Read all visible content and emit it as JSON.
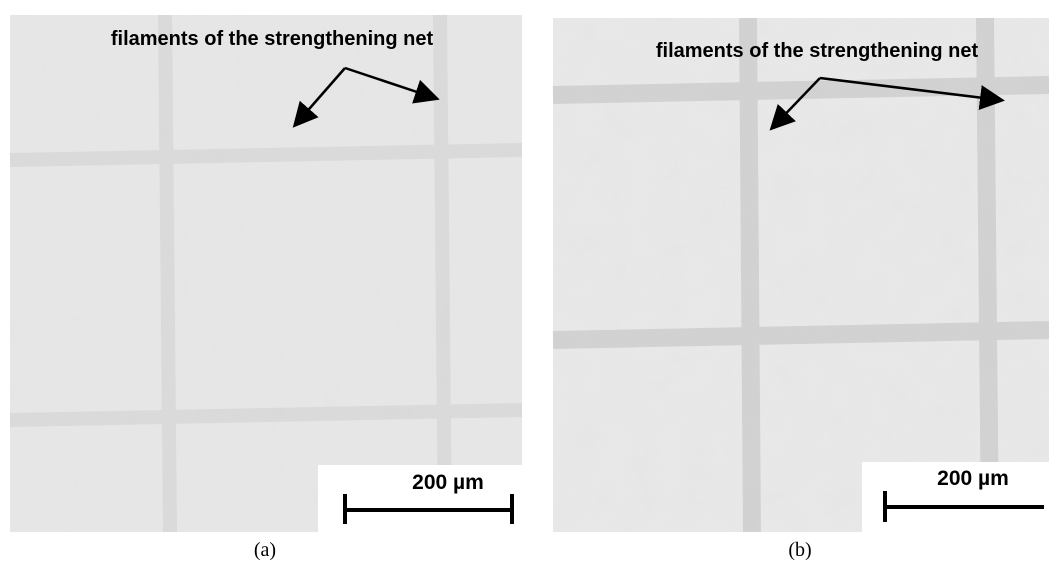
{
  "panels": [
    {
      "annotation": "filaments of the strengthening net",
      "scale_bar": "200 µm",
      "caption": "(a)"
    },
    {
      "annotation": "filaments of the strengthening net",
      "scale_bar": "200 µm",
      "caption": "(b)"
    }
  ]
}
